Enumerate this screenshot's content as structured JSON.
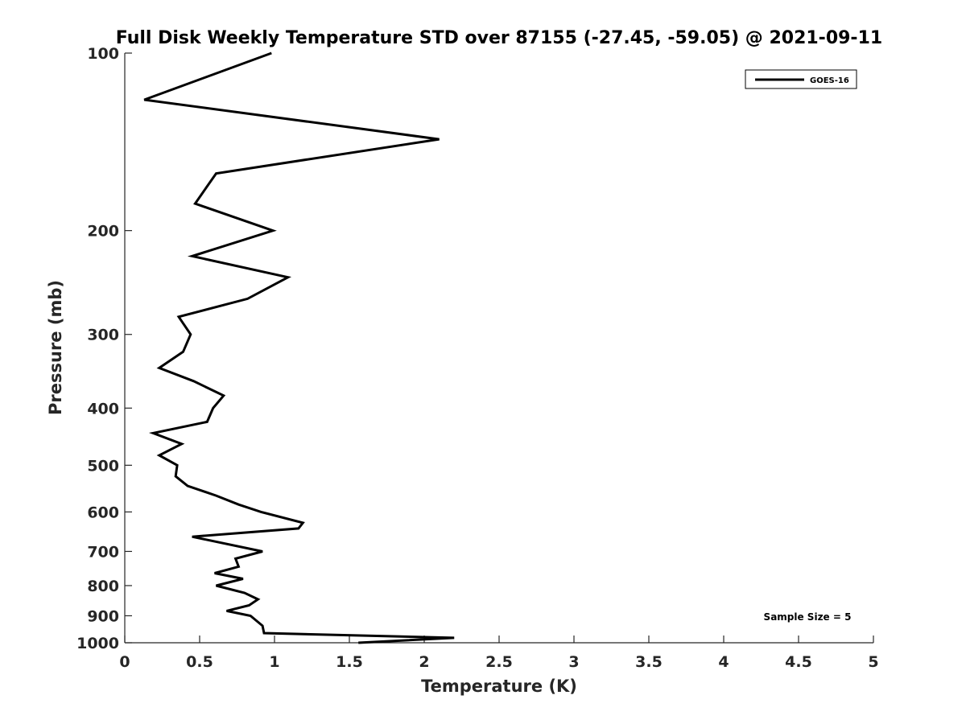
{
  "chart_data": {
    "type": "line",
    "title": "Full Disk Weekly Temperature STD over 87155 (-27.45, -59.05) @ 2021-09-11",
    "xlabel": "Temperature (K)",
    "ylabel": "Pressure (mb)",
    "xlim": [
      0,
      5
    ],
    "ylim": [
      100,
      1000
    ],
    "yscale": "log",
    "y_reversed": true,
    "grid": false,
    "xticks": [
      "0",
      "0.5",
      "1",
      "1.5",
      "2",
      "2.5",
      "3",
      "3.5",
      "4",
      "4.5",
      "5"
    ],
    "yticks": [
      "100",
      "200",
      "300",
      "400",
      "500",
      "600",
      "700",
      "800",
      "900",
      "1000"
    ],
    "legend": {
      "placement": "top-right",
      "entries": [
        "GOES-16"
      ]
    },
    "annotation": "Sample Size = 5",
    "series": [
      {
        "name": "GOES-16",
        "color": "#000000",
        "points": [
          [
            0.98,
            100
          ],
          [
            0.13,
            120
          ],
          [
            2.1,
            140
          ],
          [
            0.61,
            160
          ],
          [
            0.47,
            180
          ],
          [
            0.99,
            200
          ],
          [
            0.45,
            221
          ],
          [
            1.09,
            240
          ],
          [
            0.82,
            261
          ],
          [
            0.36,
            280
          ],
          [
            0.44,
            300
          ],
          [
            0.39,
            321
          ],
          [
            0.23,
            342
          ],
          [
            0.46,
            360
          ],
          [
            0.66,
            381
          ],
          [
            0.59,
            400
          ],
          [
            0.55,
            422
          ],
          [
            0.19,
            441
          ],
          [
            0.38,
            460
          ],
          [
            0.23,
            481
          ],
          [
            0.35,
            500
          ],
          [
            0.34,
            522
          ],
          [
            0.42,
            542
          ],
          [
            0.61,
            563
          ],
          [
            0.76,
            583
          ],
          [
            0.91,
            600
          ],
          [
            1.19,
            626
          ],
          [
            1.16,
            640
          ],
          [
            0.45,
            661
          ],
          [
            0.92,
            700
          ],
          [
            0.74,
            720
          ],
          [
            0.76,
            743
          ],
          [
            0.6,
            762
          ],
          [
            0.79,
            779
          ],
          [
            0.61,
            800
          ],
          [
            0.8,
            823
          ],
          [
            0.89,
            844
          ],
          [
            0.83,
            864
          ],
          [
            0.68,
            883
          ],
          [
            0.84,
            900
          ],
          [
            0.92,
            936
          ],
          [
            0.93,
            963
          ],
          [
            2.2,
            981
          ],
          [
            1.56,
            1000
          ]
        ]
      }
    ]
  }
}
